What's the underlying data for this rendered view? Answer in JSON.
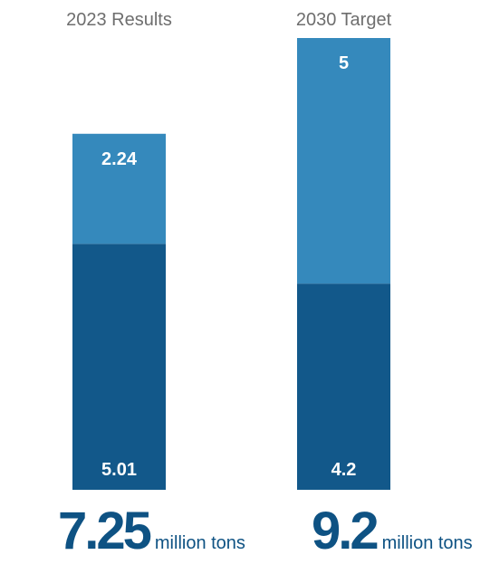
{
  "chart_data": {
    "type": "bar",
    "stacked": true,
    "categories": [
      "2023 Results",
      "2030 Target"
    ],
    "series": [
      {
        "values": [
          5.01,
          4.2
        ],
        "color": "#12588a"
      },
      {
        "values": [
          2.24,
          5
        ],
        "color": "#3589bc"
      }
    ],
    "totals": [
      {
        "value": "7.25",
        "unit": "million tons"
      },
      {
        "value": "9.2",
        "unit": "million tons"
      }
    ],
    "ylim": [
      0,
      9.2
    ],
    "grid": false,
    "legend": "none"
  }
}
